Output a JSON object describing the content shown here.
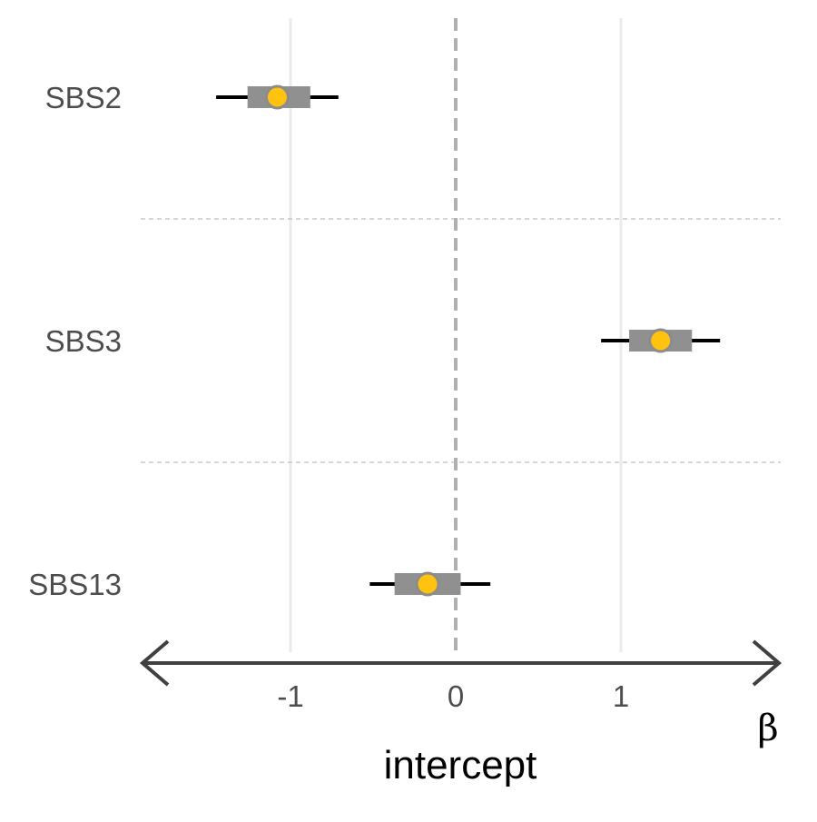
{
  "chart_data": {
    "type": "forest",
    "title": "",
    "xlabel": "intercept",
    "axis_symbol": "β",
    "xlim": [
      -1.9,
      1.95
    ],
    "x_ticks": [
      -1,
      0,
      1
    ],
    "x_tick_labels": [
      "-1",
      "0",
      "1"
    ],
    "reference_line": 0,
    "categories": [
      "SBS2",
      "SBS3",
      "SBS13"
    ],
    "estimates": [
      {
        "category": "SBS2",
        "estimate": -1.08,
        "inner_low": -1.26,
        "inner_high": -0.88,
        "outer_low": -1.45,
        "outer_high": -0.71
      },
      {
        "category": "SBS3",
        "estimate": 1.24,
        "inner_low": 1.05,
        "inner_high": 1.43,
        "outer_low": 0.88,
        "outer_high": 1.6
      },
      {
        "category": "SBS13",
        "estimate": -0.17,
        "inner_low": -0.37,
        "inner_high": 0.03,
        "outer_low": -0.52,
        "outer_high": 0.21
      }
    ],
    "grid": true,
    "legend": "none"
  },
  "colors": {
    "point_fill": "#FFC20E",
    "point_stroke": "#8C8C8C",
    "inner_interval": "#909090",
    "outer_interval": "#000000",
    "gridline": "#EBEBEB",
    "separator": "#C8C8C8",
    "reference_line": "#B0B0B0",
    "axis_arrow": "#404040",
    "tick_text": "#4D4D4D"
  }
}
